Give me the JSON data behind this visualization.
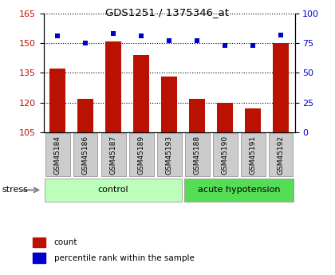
{
  "title": "GDS1251 / 1375346_at",
  "samples": [
    "GSM45184",
    "GSM45186",
    "GSM45187",
    "GSM45189",
    "GSM45193",
    "GSM45188",
    "GSM45190",
    "GSM45191",
    "GSM45192"
  ],
  "count_values": [
    137,
    122,
    151,
    144,
    133,
    122,
    120,
    117,
    150
  ],
  "percentile_values": [
    81,
    75,
    83,
    81,
    77,
    77,
    73,
    73,
    82
  ],
  "groups": [
    {
      "label": "control",
      "start": 0,
      "end": 4,
      "color": "#bbffbb"
    },
    {
      "label": "acute hypotension",
      "start": 5,
      "end": 8,
      "color": "#55dd55"
    }
  ],
  "stress_label": "stress",
  "ylim_left": [
    105,
    165
  ],
  "ylim_right": [
    0,
    100
  ],
  "yticks_left": [
    105,
    120,
    135,
    150,
    165
  ],
  "yticks_right": [
    0,
    25,
    50,
    75,
    100
  ],
  "bar_color": "#bb1100",
  "dot_color": "#0000cc",
  "grid_color": "#000000",
  "sample_box_color": "#cccccc",
  "bar_width": 0.55,
  "legend_items": [
    {
      "label": "count",
      "color": "#bb1100"
    },
    {
      "label": "percentile rank within the sample",
      "color": "#0000cc"
    }
  ]
}
